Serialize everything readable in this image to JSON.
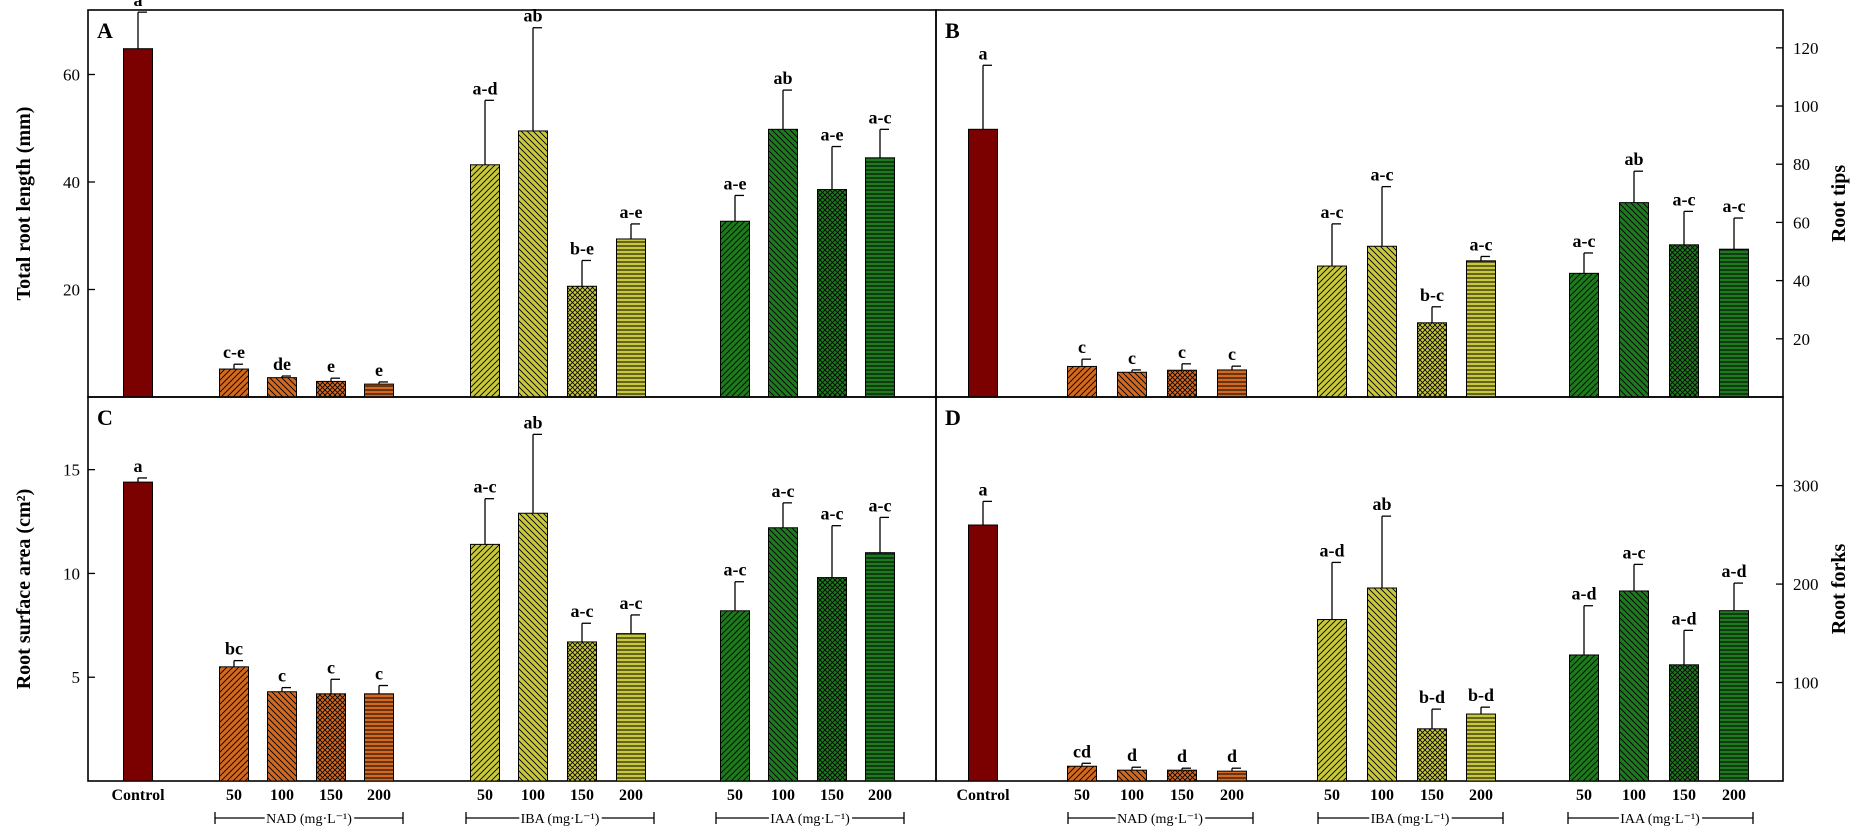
{
  "figure": {
    "colors": {
      "control": "#7B0000",
      "nad": "#D2691E",
      "iba": "#C8C83A",
      "iaa": "#1E7A1E"
    },
    "x_labels": {
      "control": "Control",
      "concentrations": [
        "50",
        "100",
        "150",
        "200"
      ],
      "groups": [
        "NAD (mg·L⁻¹)",
        "IBA (mg·L⁻¹)",
        "IAA (mg·L⁻¹)"
      ]
    }
  },
  "chart_data": [
    {
      "panel": "A",
      "type": "bar",
      "ylabel": "Total root length (mm)",
      "yticks": [
        20,
        40,
        60
      ],
      "ylim": [
        0,
        72
      ],
      "categories": [
        "Control",
        "NAD 50",
        "NAD 100",
        "NAD 150",
        "NAD 200",
        "IBA 50",
        "IBA 100",
        "IBA 150",
        "IBA 200",
        "IAA 50",
        "IAA 100",
        "IAA 150",
        "IAA 200"
      ],
      "values": [
        64.8,
        5.2,
        3.6,
        2.9,
        2.4,
        43.2,
        49.5,
        20.6,
        29.4,
        32.7,
        49.8,
        38.6,
        44.5
      ],
      "errors": [
        6.8,
        0.9,
        0.3,
        0.6,
        0.4,
        12.0,
        19.2,
        4.8,
        2.8,
        4.8,
        7.3,
        8.0,
        5.3
      ],
      "letters": [
        "a",
        "c-e",
        "de",
        "e",
        "e",
        "a-d",
        "ab",
        "b-e",
        "a-e",
        "a-e",
        "ab",
        "a-e",
        "a-c"
      ]
    },
    {
      "panel": "B",
      "type": "bar",
      "ylabel": "Root tips",
      "yticks": [
        20,
        40,
        60,
        80,
        100,
        120
      ],
      "ylim": [
        0,
        133
      ],
      "categories": [
        "Control",
        "NAD 50",
        "NAD 100",
        "NAD 150",
        "NAD 200",
        "IBA 50",
        "IBA 100",
        "IBA 150",
        "IBA 200",
        "IAA 50",
        "IAA 100",
        "IAA 150",
        "IAA 200"
      ],
      "values": [
        92,
        10.5,
        8.5,
        9.2,
        9.3,
        45,
        51.8,
        25.5,
        46.8,
        42.5,
        66.8,
        52.3,
        50.8
      ],
      "errors": [
        22,
        2.5,
        0.8,
        2.2,
        1.3,
        14.5,
        20.5,
        5.5,
        1.5,
        7.0,
        10.8,
        11.5,
        10.7
      ],
      "letters": [
        "a",
        "c",
        "c",
        "c",
        "c",
        "a-c",
        "a-c",
        "b-c",
        "a-c",
        "a-c",
        "ab",
        "a-c",
        "a-c"
      ]
    },
    {
      "panel": "C",
      "type": "bar",
      "ylabel": "Root surface area (cm²)",
      "yticks": [
        5,
        10,
        15
      ],
      "ylim": [
        0,
        18.5
      ],
      "categories": [
        "Control",
        "NAD 50",
        "NAD 100",
        "NAD 150",
        "NAD 200",
        "IBA 50",
        "IBA 100",
        "IBA 150",
        "IBA 200",
        "IAA 50",
        "IAA 100",
        "IAA 150",
        "IAA 200"
      ],
      "values": [
        14.4,
        5.5,
        4.3,
        4.2,
        4.2,
        11.4,
        12.9,
        6.7,
        7.1,
        8.2,
        12.2,
        9.8,
        11.0
      ],
      "errors": [
        0.2,
        0.3,
        0.2,
        0.7,
        0.4,
        2.2,
        3.8,
        0.9,
        0.9,
        1.4,
        1.2,
        2.5,
        1.7
      ],
      "letters": [
        "a",
        "bc",
        "c",
        "c",
        "c",
        "a-c",
        "ab",
        "a-c",
        "a-c",
        "a-c",
        "a-c",
        "a-c",
        "a-c"
      ]
    },
    {
      "panel": "D",
      "type": "bar",
      "ylabel": "Root forks",
      "yticks": [
        100,
        200,
        300
      ],
      "ylim": [
        0,
        390
      ],
      "categories": [
        "Control",
        "NAD 50",
        "NAD 100",
        "NAD 150",
        "NAD 200",
        "IBA 50",
        "IBA 100",
        "IBA 150",
        "IBA 200",
        "IAA 50",
        "IAA 100",
        "IAA 150",
        "IAA 200"
      ],
      "values": [
        260,
        15,
        11,
        11,
        10,
        164,
        196,
        53,
        68,
        128,
        193,
        118,
        173
      ],
      "errors": [
        24,
        3,
        3,
        2,
        3,
        58,
        73,
        20,
        7,
        50,
        27,
        35,
        28
      ],
      "letters": [
        "a",
        "cd",
        "d",
        "d",
        "d",
        "a-d",
        "ab",
        "b-d",
        "b-d",
        "a-d",
        "a-c",
        "a-d",
        "a-d"
      ]
    }
  ]
}
